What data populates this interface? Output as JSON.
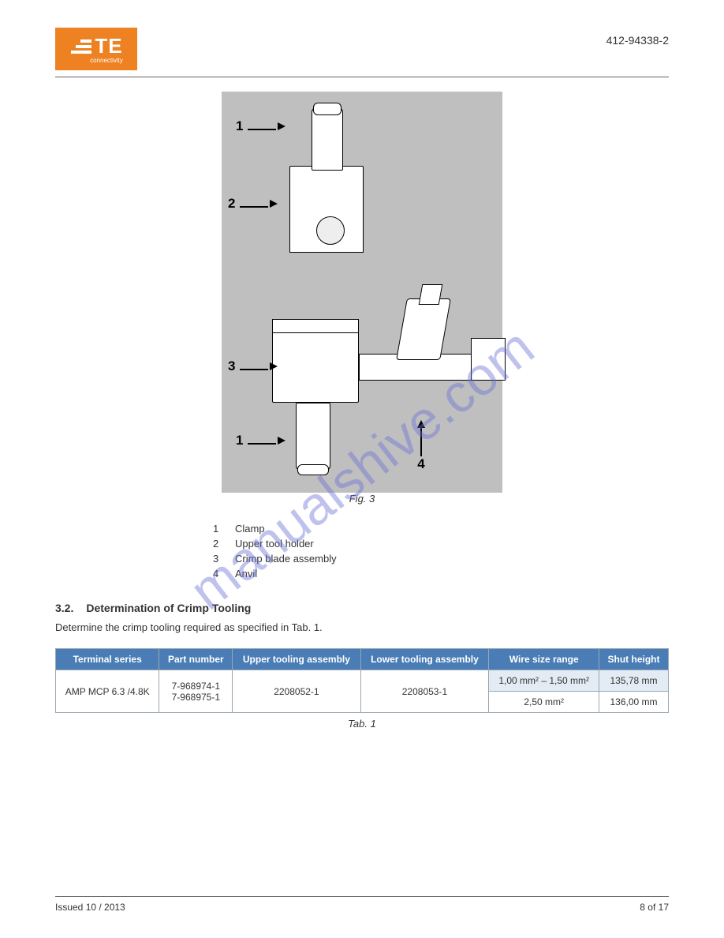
{
  "header": {
    "logo_brand": "TE",
    "logo_sub": "connectivity",
    "doc_id": "412-94338-2"
  },
  "figure": {
    "callouts": {
      "c1a": "1",
      "c2": "2",
      "c3": "3",
      "c1b": "1",
      "c4": "4"
    },
    "caption": "Fig. 3",
    "bg_color": "#bfbfbf",
    "part_fill": "#ffffff",
    "part_stroke": "#000000"
  },
  "legend": {
    "items": [
      {
        "num": "1",
        "text": "Clamp"
      },
      {
        "num": "2",
        "text": "Upper tool holder"
      },
      {
        "num": "3",
        "text": "Crimp blade assembly"
      },
      {
        "num": "4",
        "text": "Anvil"
      }
    ]
  },
  "section": {
    "num": "3.2.",
    "title": "Determination of Crimp Tooling",
    "body": "Determine the crimp tooling required as specified in Tab. 1."
  },
  "table": {
    "headers": [
      "Terminal series",
      "Part number",
      "Upper tooling assembly",
      "Lower tooling assembly",
      "Wire size range",
      "Shut height"
    ],
    "rowspan_cells": {
      "col0": "AMP MCP 6.3 /4.8K",
      "col1": "7-968974-1\n7-968975-1",
      "col2": "2208052-1",
      "col3": "2208053-1"
    },
    "subrows": [
      {
        "wire": "1,00 mm² – 1,50 mm²",
        "shut": "135,78 mm"
      },
      {
        "wire": "2,50 mm²",
        "shut": "136,00 mm"
      }
    ],
    "caption": "Tab. 1",
    "header_bg": "#4a7db5",
    "header_fg": "#ffffff",
    "alt_row_bg": "#e3ecf4"
  },
  "watermark": "manualshive.com",
  "footer": {
    "left": "Issued 10 / 2013",
    "right": "8 of 17"
  }
}
